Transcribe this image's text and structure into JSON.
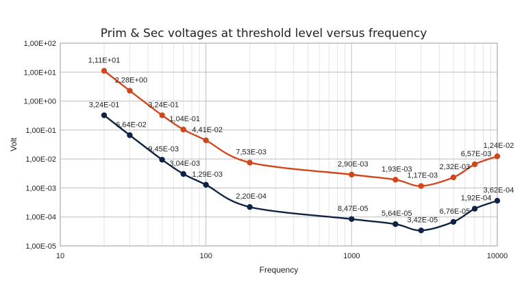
{
  "chart_data": {
    "type": "line",
    "title": "Prim & Sec voltages at threshold level versus frequency",
    "xlabel": "Frequency",
    "ylabel": "Volt",
    "xscale": "log",
    "yscale": "log",
    "xlim": [
      10,
      10000
    ],
    "ylim": [
      1e-05,
      100
    ],
    "grid": true,
    "legend": "none",
    "x_tick_labels": [
      "10",
      "100",
      "1000",
      "10000"
    ],
    "x_ticks": [
      10,
      100,
      1000,
      10000
    ],
    "y_tick_labels": [
      "1,00E-05",
      "1,00E-04",
      "1,00E-03",
      "1,00E-02",
      "1,00E-01",
      "1,00E+00",
      "1,00E+01",
      "1,00E+02"
    ],
    "y_ticks": [
      1e-05,
      0.0001,
      0.001,
      0.01,
      0.1,
      1,
      10,
      100
    ],
    "x": [
      20,
      30,
      50,
      70,
      100,
      200,
      1000,
      2000,
      3000,
      5000,
      7000,
      10000
    ],
    "series": [
      {
        "name": "Prim",
        "color": "#D2461C",
        "values": [
          11.1,
          2.28,
          0.324,
          0.104,
          0.0441,
          0.00753,
          0.0029,
          0.00193,
          0.00117,
          0.00232,
          0.00657,
          0.0124
        ],
        "labels": [
          "1,11E+01",
          "2,28E+00",
          "3,24E-01",
          "1,04E-01",
          "4,41E-02",
          "7,53E-03",
          "2,90E-03",
          "1,93E-03",
          "1,17E-03",
          "2,32E-03",
          "6,57E-03",
          "1,24E-02"
        ]
      },
      {
        "name": "Sec",
        "color": "#0E2245",
        "values": [
          0.324,
          0.0664,
          0.00945,
          0.00304,
          0.00129,
          0.00022,
          8.47e-05,
          5.64e-05,
          3.42e-05,
          6.76e-05,
          0.000192,
          0.000362
        ],
        "labels": [
          "3,24E-01",
          "6,64E-02",
          "9,45E-03",
          "3,04E-03",
          "1,29E-03",
          "2,20E-04",
          "8,47E-05",
          "5,64E-05",
          "3,42E-05",
          "6,76E-05",
          "1,92E-04",
          "3,62E-04"
        ]
      }
    ]
  }
}
